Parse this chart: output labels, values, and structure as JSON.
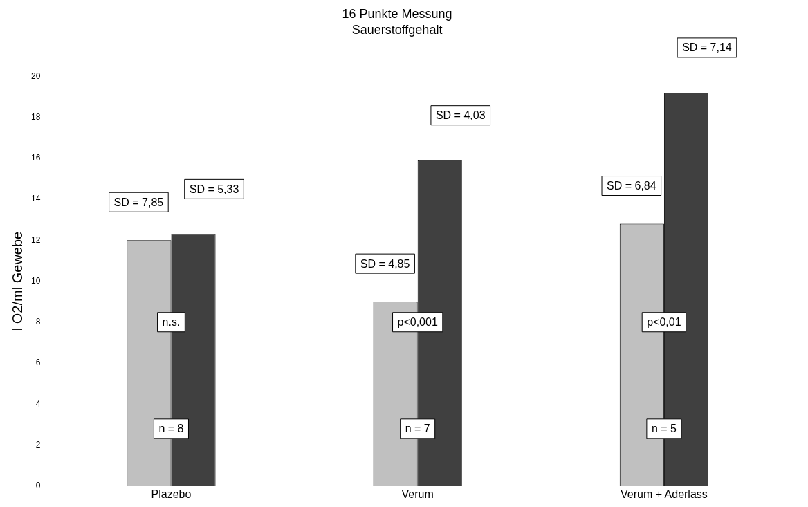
{
  "chart_data": {
    "type": "bar",
    "title": "16 Punkte Messung",
    "subtitle": "Sauerstoffgehalt",
    "ylabel": "l O2/ml Gewebe",
    "categories": [
      "Plazebo",
      "Verum",
      "Verum + Aderlass"
    ],
    "series": [
      {
        "color": "#c0c0c0",
        "values": [
          12.0,
          9.0,
          12.8
        ]
      },
      {
        "color": "#404040",
        "values": [
          12.3,
          15.9,
          19.2
        ]
      }
    ],
    "ylim": [
      0,
      20
    ],
    "yticks": [
      0,
      2,
      4,
      6,
      8,
      10,
      12,
      14,
      16,
      18,
      20
    ],
    "grid": false,
    "legend": false,
    "annotations": [
      "SD = 7,85",
      "SD = 5,33",
      "n.s.",
      "n = 8",
      "SD = 4,85",
      "SD = 4,03",
      "p<0,001",
      "n = 7",
      "SD = 6,84",
      "SD = 7,14",
      "p<0,01",
      "n = 5"
    ]
  }
}
